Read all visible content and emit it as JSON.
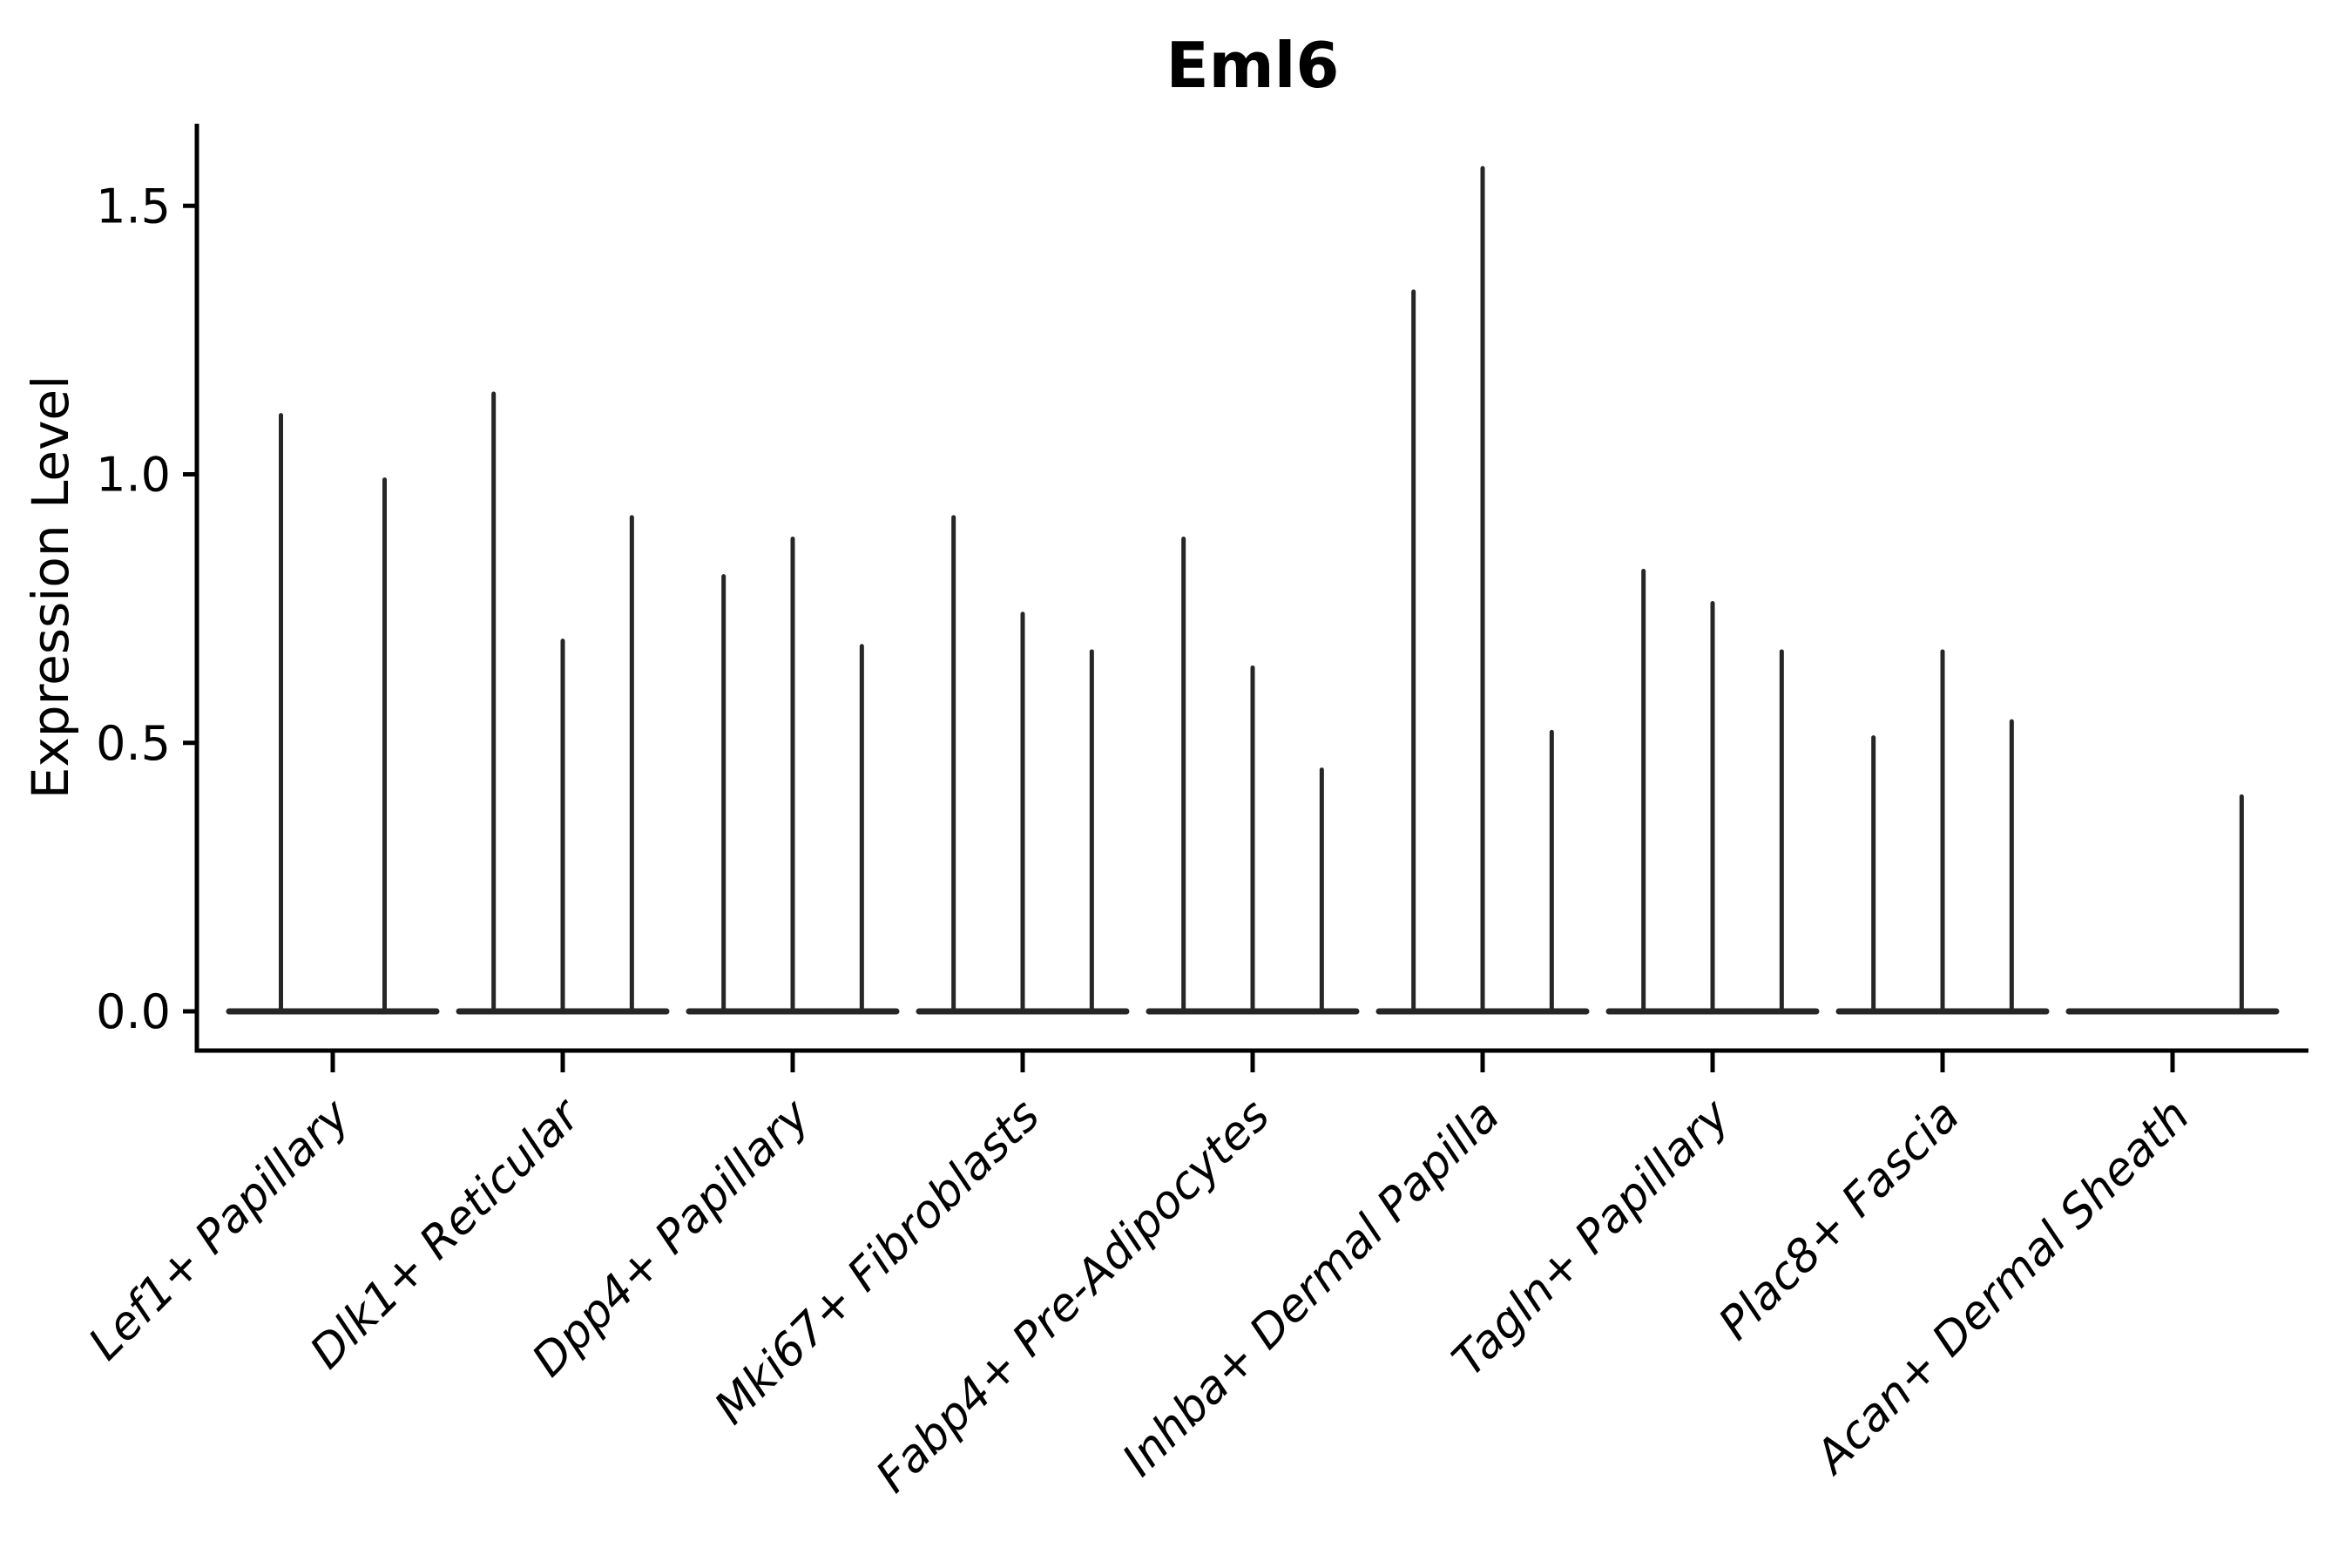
{
  "chart_data": {
    "type": "violin",
    "title": "Eml6",
    "ylabel": "Expression Level",
    "xlabel": "",
    "ytick_labels": [
      "0.0",
      "0.5",
      "1.0",
      "1.5"
    ],
    "ytick_values": [
      0.0,
      0.5,
      1.0,
      1.5
    ],
    "ylim": [
      -0.073,
      1.65
    ],
    "grid": false,
    "legend": "none",
    "background": "#ffffff",
    "violin_line_color": "#262626",
    "axis_color": "#000000",
    "categories": [
      "Lef1+ Papillary",
      "Dlk1+ Reticular",
      "Dpp4+ Papillary",
      "Mki67+ Fibroblasts",
      "Fabp4+ Pre-Adipocytes",
      "Inhba+ Dermal Papilla",
      "Tagln+ Papillary",
      "Plac8+ Fascia",
      "Acan+ Dermal Sheath"
    ],
    "violin_max_expression": [
      [
        1.11,
        0.99
      ],
      [
        1.15,
        0.69,
        0.92
      ],
      [
        0.81,
        0.88,
        0.68
      ],
      [
        0.92,
        0.74,
        0.67
      ],
      [
        0.88,
        0.64,
        0.45
      ],
      [
        1.34,
        1.57,
        0.52
      ],
      [
        0.82,
        0.76,
        0.67
      ],
      [
        0.51,
        0.67,
        0.54
      ],
      [
        0.0,
        0.0,
        0.4
      ]
    ],
    "note": "Each category holds multiple needle-thin violins flattened at 0 with a vertical spike up to the maximum expression value; violins with max 0 render as a flat line only."
  }
}
